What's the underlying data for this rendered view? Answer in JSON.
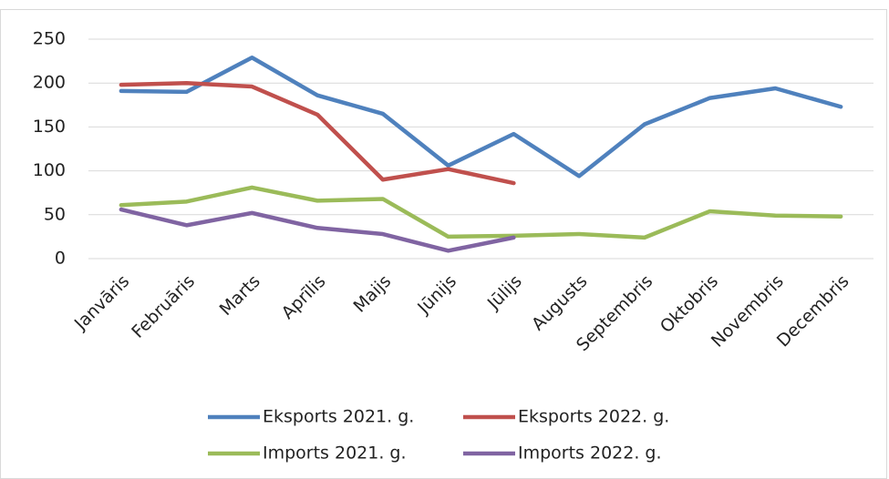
{
  "chart_data": {
    "type": "line",
    "categories": [
      "Janvāris",
      "Februāris",
      "Marts",
      "Aprīlis",
      "Maijs",
      "Jūnijs",
      "Jūlijs",
      "Augusts",
      "Septembris",
      "Oktobris",
      "Novembris",
      "Decembris"
    ],
    "series": [
      {
        "name": "Eksports 2021. g.",
        "color": "#4f81bd",
        "values": [
          191,
          190,
          229,
          186,
          165,
          106,
          142,
          94,
          153,
          183,
          194,
          173
        ]
      },
      {
        "name": "Eksports 2022. g.",
        "color": "#c0504d",
        "values": [
          198,
          200,
          196,
          164,
          90,
          102,
          86,
          null,
          null,
          null,
          null,
          null
        ]
      },
      {
        "name": "Imports 2021. g.",
        "color": "#9bbb59",
        "values": [
          61,
          65,
          81,
          66,
          68,
          25,
          26,
          28,
          24,
          54,
          49,
          48
        ]
      },
      {
        "name": "Imports 2022. g.",
        "color": "#8064a2",
        "values": [
          56,
          38,
          52,
          35,
          28,
          9,
          24,
          null,
          null,
          null,
          null,
          null
        ]
      }
    ],
    "ylim": [
      0,
      250
    ],
    "yticks": [
      0,
      50,
      100,
      150,
      200,
      250
    ],
    "grid": true,
    "legend": "bottom"
  }
}
